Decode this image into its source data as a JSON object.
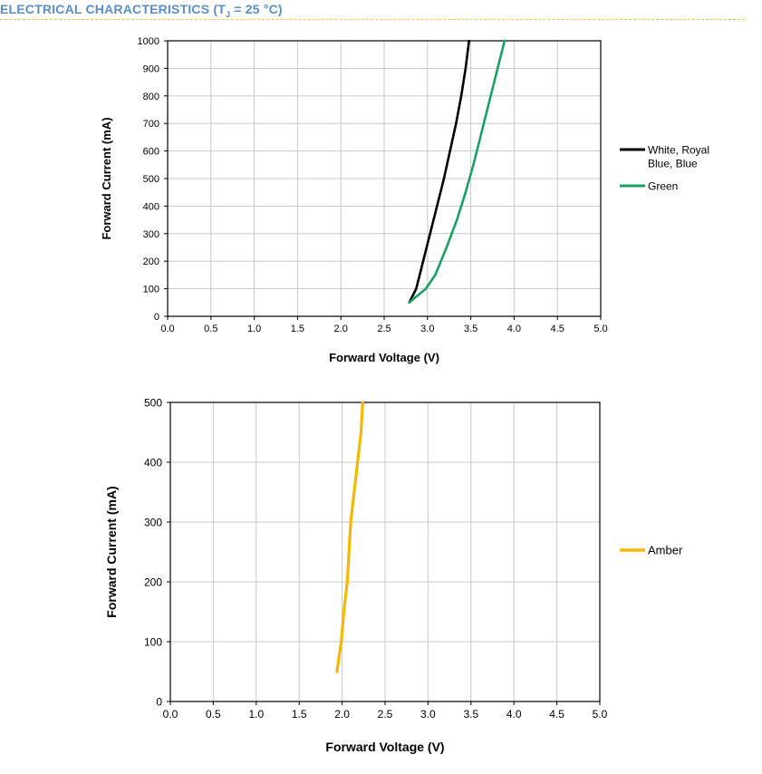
{
  "header": {
    "title_prefix": "ELECTRICAL CHARACTERISTICS (T",
    "title_sub": "J",
    "title_suffix": " = 25 °C)",
    "accent_color": "#5b8ec8",
    "rule_color": "#f0c54a"
  },
  "chart_data": [
    {
      "type": "line",
      "title": "",
      "xlabel": "Forward Voltage (V)",
      "ylabel": "Forward Current (mA)",
      "xlim": [
        0,
        5
      ],
      "ylim": [
        0,
        1000
      ],
      "x_ticks": [
        "0.0",
        "0.5",
        "1.0",
        "1.5",
        "2.0",
        "2.5",
        "3.0",
        "3.5",
        "4.0",
        "4.5",
        "5.0"
      ],
      "y_ticks": [
        "0",
        "100",
        "200",
        "300",
        "400",
        "500",
        "600",
        "700",
        "800",
        "900",
        "1000"
      ],
      "grid": true,
      "legend_position": "right",
      "series": [
        {
          "name_lines": [
            "White, Royal",
            "Blue, Blue"
          ],
          "color": "#000000",
          "points": [
            [
              2.79,
              50
            ],
            [
              2.87,
              100
            ],
            [
              2.95,
              200
            ],
            [
              3.03,
              300
            ],
            [
              3.11,
              400
            ],
            [
              3.19,
              500
            ],
            [
              3.26,
              600
            ],
            [
              3.33,
              700
            ],
            [
              3.39,
              800
            ],
            [
              3.44,
              900
            ],
            [
              3.48,
              1000
            ]
          ]
        },
        {
          "name_lines": [
            "Green"
          ],
          "color": "#1aa064",
          "points": [
            [
              2.79,
              50
            ],
            [
              2.98,
              100
            ],
            [
              3.09,
              150
            ],
            [
              3.22,
              250
            ],
            [
              3.34,
              350
            ],
            [
              3.44,
              450
            ],
            [
              3.53,
              550
            ],
            [
              3.61,
              650
            ],
            [
              3.69,
              750
            ],
            [
              3.77,
              850
            ],
            [
              3.85,
              950
            ],
            [
              3.89,
              1000
            ]
          ]
        }
      ]
    },
    {
      "type": "line",
      "title": "",
      "xlabel": "Forward Voltage (V)",
      "ylabel": "Forward Current (mA)",
      "xlim": [
        0,
        5
      ],
      "ylim": [
        0,
        500
      ],
      "x_ticks": [
        "0.0",
        "0.5",
        "1.0",
        "1.5",
        "2.0",
        "2.5",
        "3.0",
        "3.5",
        "4.0",
        "4.5",
        "5.0"
      ],
      "y_ticks": [
        "0",
        "100",
        "200",
        "300",
        "400",
        "500"
      ],
      "grid": true,
      "legend_position": "right",
      "series": [
        {
          "name_lines": [
            "Amber"
          ],
          "color": "#f5b800",
          "points": [
            [
              1.94,
              50
            ],
            [
              1.99,
              100
            ],
            [
              2.02,
              150
            ],
            [
              2.06,
              200
            ],
            [
              2.1,
              300
            ],
            [
              2.14,
              350
            ],
            [
              2.18,
              400
            ],
            [
              2.22,
              450
            ],
            [
              2.24,
              500
            ]
          ]
        }
      ]
    }
  ]
}
